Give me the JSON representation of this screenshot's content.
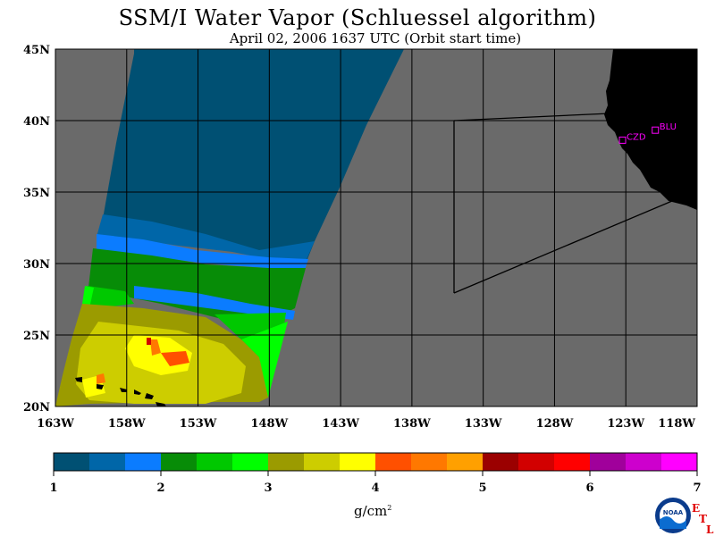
{
  "title": "SSM/I Water Vapor (Schluessel algorithm)",
  "subtitle": "April 02, 2006  1637 UTC  (Orbit start time)",
  "map": {
    "lat_labels": [
      "45N",
      "40N",
      "35N",
      "30N",
      "25N",
      "20N"
    ],
    "lon_labels": [
      "163W",
      "158W",
      "153W",
      "148W",
      "143W",
      "138W",
      "133W",
      "128W",
      "123W",
      "118W"
    ],
    "stations": [
      {
        "name": "CZD",
        "lat": 38.6,
        "lon": -123.2
      },
      {
        "name": "BLU",
        "lat": 39.3,
        "lon": -120.9
      }
    ],
    "colors": {
      "no_data": "#6a6a6a",
      "land": "#000000",
      "station": "#ff00ff"
    }
  },
  "colorbar": {
    "colors": [
      "#005073",
      "#0066a8",
      "#0b7cff",
      "#078c07",
      "#00c800",
      "#00ff00",
      "#9b9b00",
      "#cdcd00",
      "#ffff00",
      "#ff5000",
      "#ff7800",
      "#ffa000",
      "#9b0000",
      "#d20000",
      "#ff0000",
      "#a0009b",
      "#cd00cd",
      "#ff00ff"
    ],
    "tick_labels": [
      "1",
      "2",
      "3",
      "4",
      "5",
      "6",
      "7"
    ],
    "units": "g/cm",
    "units_sup": "2"
  },
  "logo": {
    "name": "NOAA",
    "etl_letters": [
      "E",
      "T",
      "L"
    ]
  }
}
